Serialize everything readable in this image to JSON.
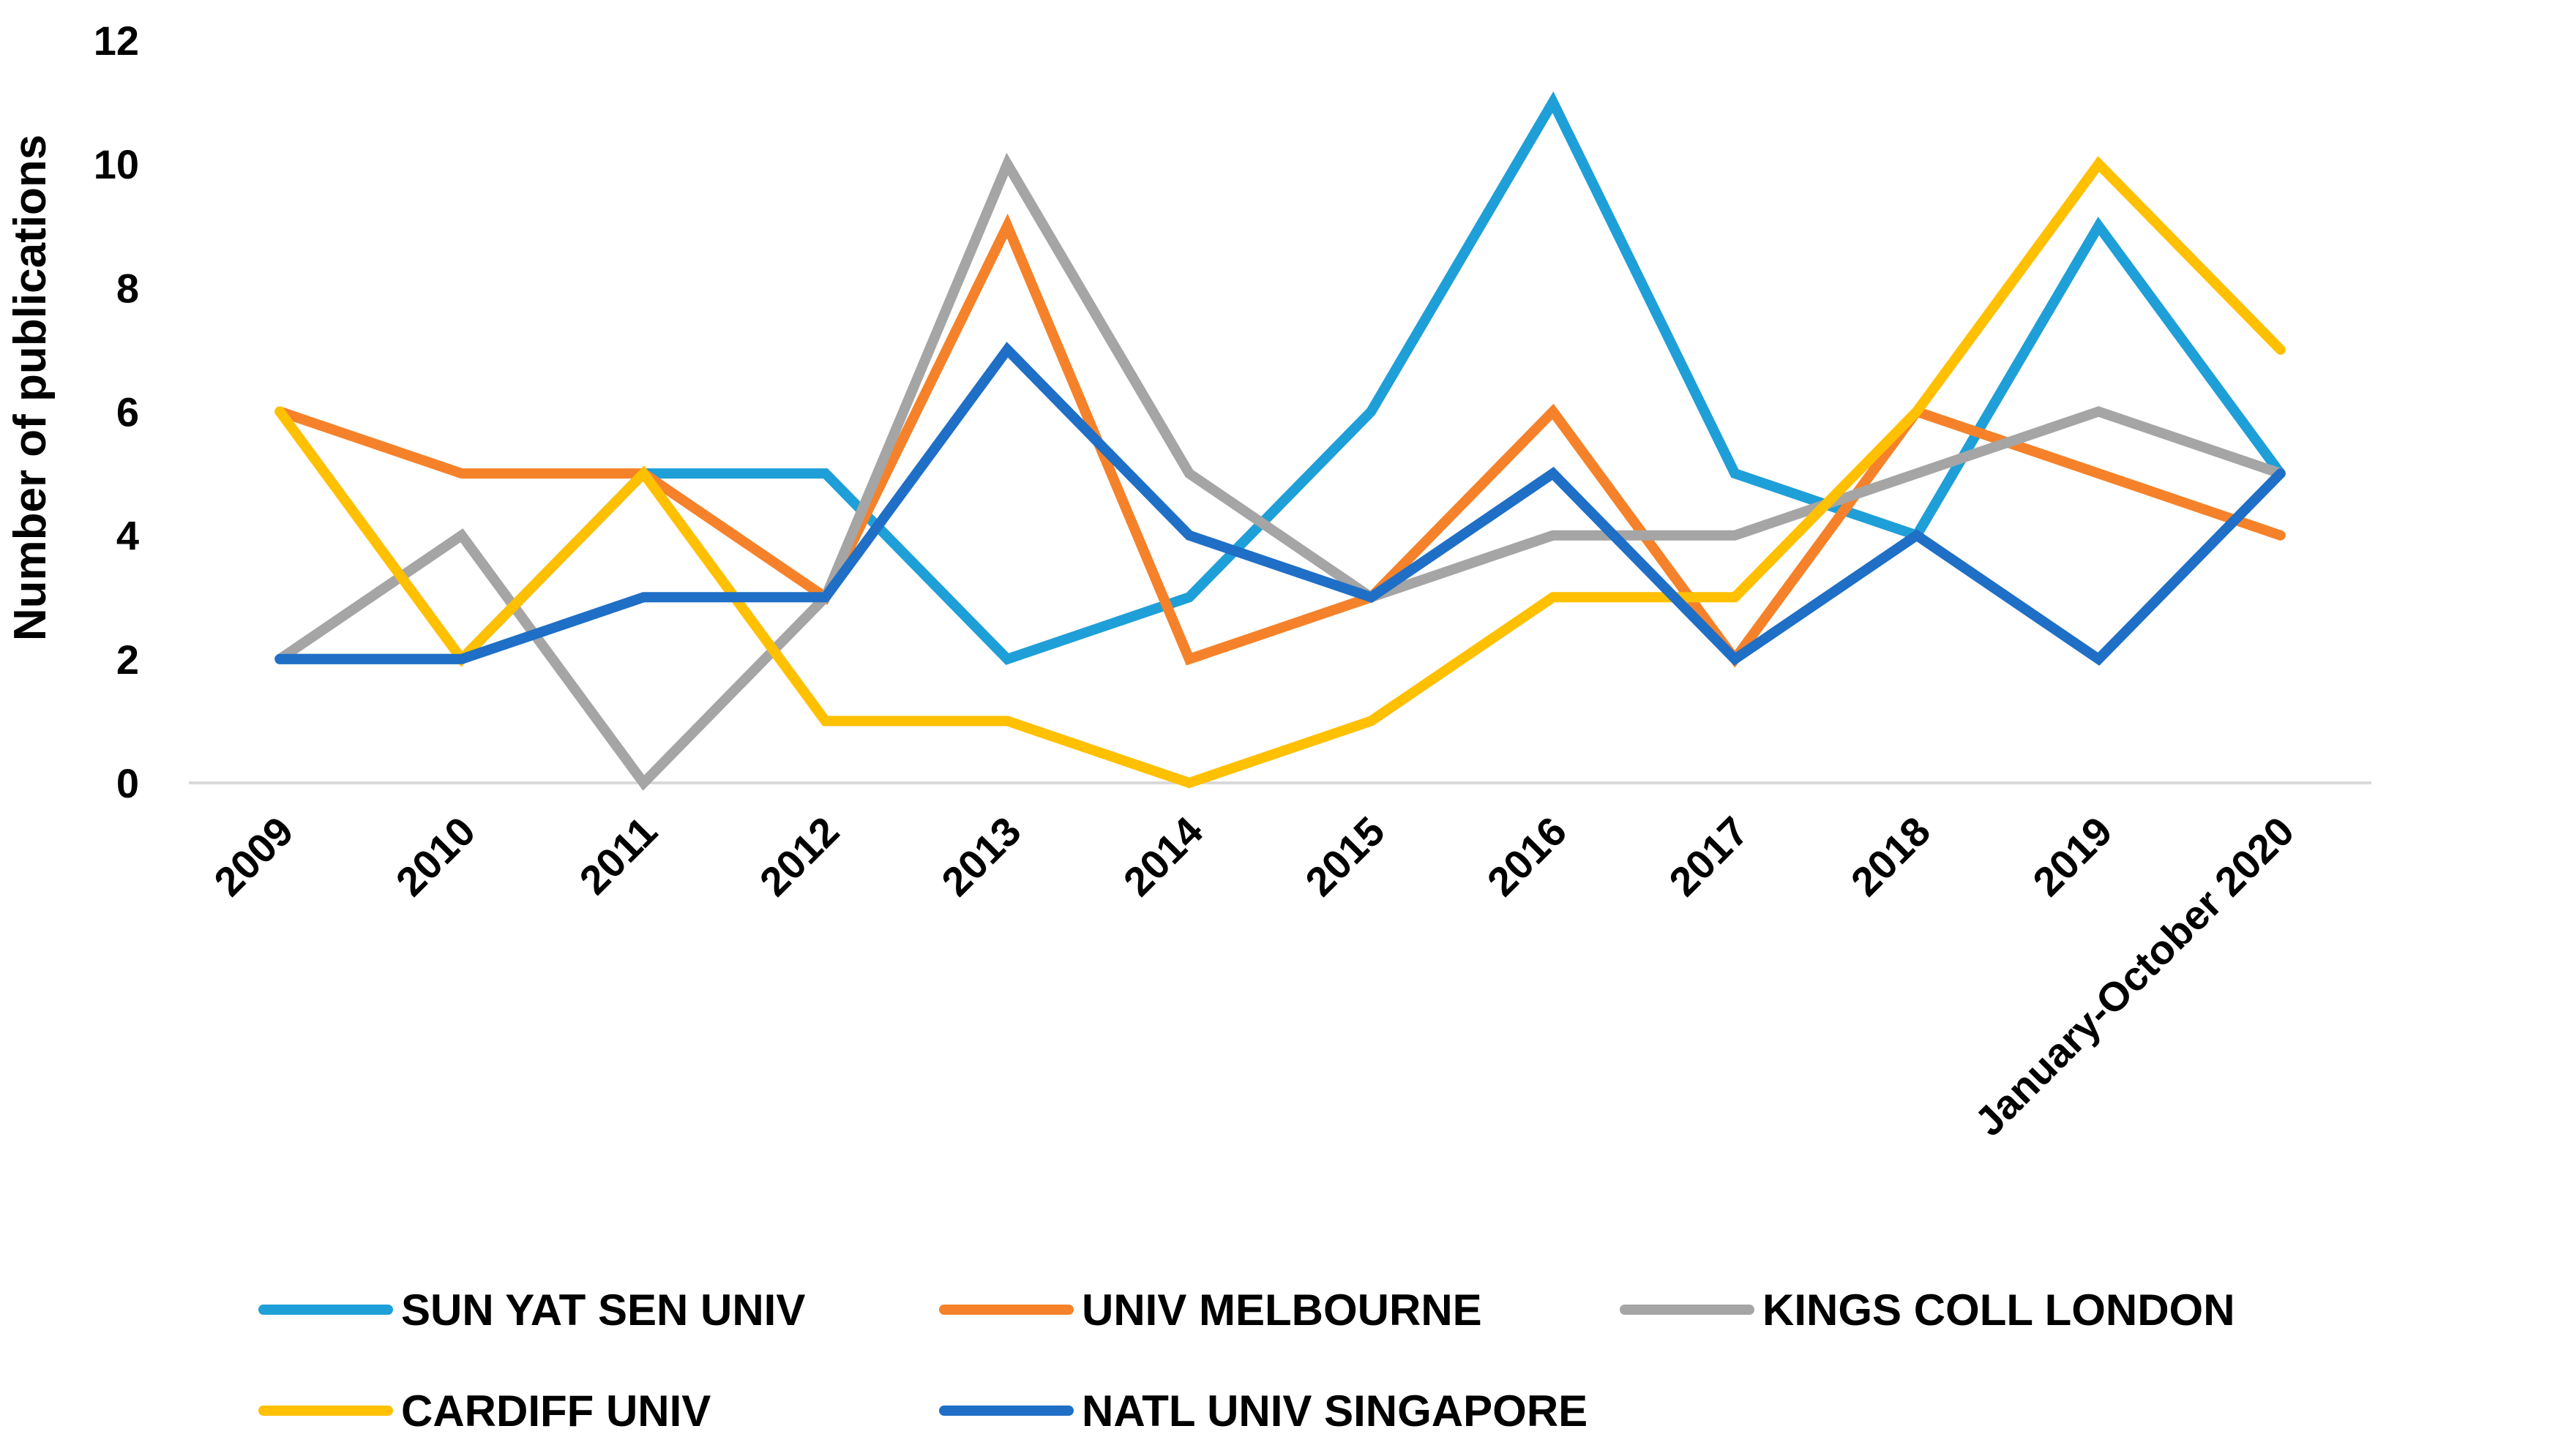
{
  "chart_data": {
    "type": "line",
    "title": "",
    "xlabel": "",
    "ylabel": "Number of publications",
    "ylim": [
      0,
      12
    ],
    "yticks": [
      0,
      2,
      4,
      6,
      8,
      10,
      12
    ],
    "grid": false,
    "legend_position": "bottom",
    "categories": [
      "2009",
      "2010",
      "2011",
      "2012",
      "2013",
      "2014",
      "2015",
      "2016",
      "2017",
      "2018",
      "2019",
      "January-October 2020"
    ],
    "series": [
      {
        "name": "SUN YAT SEN UNIV",
        "color": "#1F9FD8",
        "values": [
          2,
          2,
          5,
          5,
          2,
          3,
          6,
          11,
          5,
          4,
          9,
          5
        ]
      },
      {
        "name": "UNIV MELBOURNE",
        "color": "#F5822A",
        "values": [
          6,
          5,
          5,
          3,
          9,
          2,
          3,
          6,
          2,
          6,
          5,
          4
        ]
      },
      {
        "name": "KINGS COLL LONDON",
        "color": "#A5A5A5",
        "values": [
          2,
          4,
          0,
          3,
          10,
          5,
          3,
          4,
          4,
          5,
          6,
          5
        ]
      },
      {
        "name": "CARDIFF UNIV",
        "color": "#FFC000",
        "values": [
          6,
          2,
          5,
          1,
          1,
          0,
          1,
          3,
          3,
          6,
          10,
          7
        ]
      },
      {
        "name": "NATL UNIV SINGAPORE",
        "color": "#1F6FC6",
        "values": [
          2,
          2,
          3,
          3,
          7,
          4,
          3,
          5,
          2,
          4,
          2,
          5
        ]
      }
    ],
    "axis_color": "#D9D9D9"
  }
}
